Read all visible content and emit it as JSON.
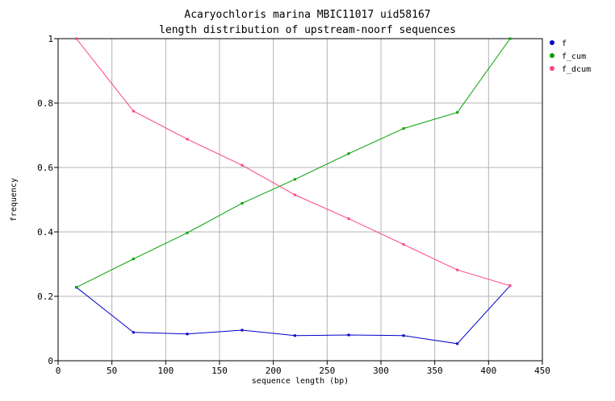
{
  "chart_data": {
    "type": "line",
    "title": "Acaryochloris marina MBIC11017 uid58167",
    "subtitle": "length distribution of upstream-noorf sequences",
    "xlabel": "sequence length (bp)",
    "ylabel": "frequency",
    "xlim": [
      0,
      450
    ],
    "ylim": [
      0,
      1
    ],
    "xticks": [
      "0",
      "50",
      "100",
      "150",
      "200",
      "250",
      "300",
      "350",
      "400",
      "450"
    ],
    "yticks": [
      "0",
      "0.2",
      "0.4",
      "0.6",
      "0.8",
      "1"
    ],
    "grid": true,
    "legend_position": "right",
    "x": [
      17,
      70,
      120,
      171,
      220,
      270,
      321,
      371,
      420
    ],
    "series": [
      {
        "name": "f",
        "color": "#0000cc",
        "values": [
          0.228,
          0.088,
          0.083,
          0.095,
          0.078,
          0.08,
          0.078,
          0.053,
          0.233
        ]
      },
      {
        "name": "f_cum",
        "color": "#00a000",
        "values": [
          0.228,
          0.316,
          0.397,
          0.489,
          0.563,
          0.643,
          0.721,
          0.771,
          1.0
        ]
      },
      {
        "name": "f_dcum",
        "color": "#ff4080",
        "values": [
          1.0,
          0.775,
          0.688,
          0.607,
          0.515,
          0.441,
          0.361,
          0.282,
          0.233
        ]
      }
    ]
  }
}
